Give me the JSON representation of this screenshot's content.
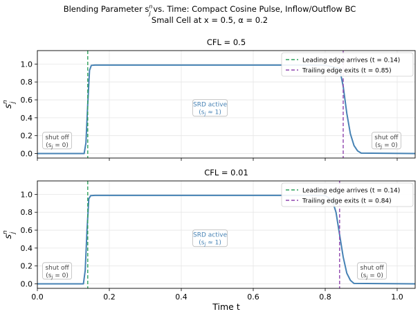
{
  "figure": {
    "title_line1": "Blending Parameter s",
    "title_sup": "n",
    "title_sub": "j",
    "title_rest": " vs. Time: Compact Cosine Pulse, Inflow/Outflow BC",
    "title_line2": "Small Cell at x = 0.5, α = 0.2"
  },
  "colors": {
    "curve": "#4682b4",
    "leading": "#2ca05a",
    "trailing": "#8e44ad",
    "annotation_text": "#4682b4",
    "shutoff_text": "#444444"
  },
  "chart_data": [
    {
      "type": "line",
      "title": "CFL = 0.5",
      "xlabel": "",
      "ylabel": "s",
      "ylabel_sup": "n",
      "ylabel_sub": "j",
      "xlim": [
        0.0,
        1.05
      ],
      "ylim": [
        -0.05,
        1.15
      ],
      "x_ticks": [
        0.0,
        0.2,
        0.4,
        0.6,
        0.8,
        1.0
      ],
      "x_tick_labels": [
        "",
        "",
        "",
        "",
        "",
        ""
      ],
      "y_ticks": [
        0.0,
        0.2,
        0.4,
        0.6,
        0.8,
        1.0
      ],
      "y_tick_labels": [
        "0.0",
        "0.2",
        "0.4",
        "0.6",
        "0.8",
        "1.0"
      ],
      "grid": true,
      "series": [
        {
          "x": [
            0.0,
            0.13,
            0.135,
            0.14,
            0.145,
            0.15,
            0.16,
            0.8,
            0.84,
            0.85,
            0.86,
            0.87,
            0.88,
            0.89,
            0.9,
            1.05
          ],
          "y": [
            0.0,
            0.0,
            0.12,
            0.55,
            0.93,
            0.985,
            0.988,
            0.988,
            0.95,
            0.75,
            0.45,
            0.22,
            0.09,
            0.03,
            0.005,
            0.0
          ]
        }
      ],
      "vlines": [
        {
          "x": 0.14,
          "label": "Leading edge arrives (t = 0.14)",
          "role": "leading"
        },
        {
          "x": 0.85,
          "label": "Trailing edge exits (t = 0.85)",
          "role": "trailing"
        }
      ],
      "legend_position": "top-right",
      "annotations": [
        {
          "role": "active",
          "x": 0.48,
          "y": 0.51,
          "line1": "SRD active",
          "line2": "(s",
          "line2_sub": "j",
          "line2_rest": " ≈ 1)"
        },
        {
          "role": "off-left",
          "x": 0.055,
          "y": 0.145,
          "line1": "shut off",
          "line2": "(s",
          "line2_sub": "j",
          "line2_rest": " = 0)"
        },
        {
          "role": "off-right",
          "x": 0.97,
          "y": 0.145,
          "line1": "shut off",
          "line2": "(s",
          "line2_sub": "j",
          "line2_rest": " = 0)"
        }
      ]
    },
    {
      "type": "line",
      "title": "CFL = 0.01",
      "xlabel": "Time t",
      "ylabel": "s",
      "ylabel_sup": "n",
      "ylabel_sub": "j",
      "xlim": [
        0.0,
        1.05
      ],
      "ylim": [
        -0.05,
        1.15
      ],
      "x_ticks": [
        0.0,
        0.2,
        0.4,
        0.6,
        0.8,
        1.0
      ],
      "x_tick_labels": [
        "0.0",
        "0.2",
        "0.4",
        "0.6",
        "0.8",
        "1.0"
      ],
      "y_ticks": [
        0.0,
        0.2,
        0.4,
        0.6,
        0.8,
        1.0
      ],
      "y_tick_labels": [
        "0.0",
        "0.2",
        "0.4",
        "0.6",
        "0.8",
        "1.0"
      ],
      "grid": true,
      "series": [
        {
          "x": [
            0.0,
            0.128,
            0.133,
            0.138,
            0.143,
            0.148,
            0.16,
            0.8,
            0.82,
            0.83,
            0.84,
            0.85,
            0.86,
            0.87,
            0.88,
            1.05
          ],
          "y": [
            0.0,
            0.0,
            0.15,
            0.6,
            0.95,
            0.985,
            0.988,
            0.988,
            0.93,
            0.8,
            0.55,
            0.3,
            0.12,
            0.04,
            0.005,
            0.0
          ]
        }
      ],
      "vlines": [
        {
          "x": 0.14,
          "label": "Leading edge arrives (t = 0.14)",
          "role": "leading"
        },
        {
          "x": 0.84,
          "label": "Trailing edge exits (t = 0.84)",
          "role": "trailing"
        }
      ],
      "legend_position": "top-right",
      "annotations": [
        {
          "role": "active",
          "x": 0.48,
          "y": 0.51,
          "line1": "SRD active",
          "line2": "(s",
          "line2_sub": "j",
          "line2_rest": " ≈ 1)"
        },
        {
          "role": "off-left",
          "x": 0.055,
          "y": 0.145,
          "line1": "shut off",
          "line2": "(s",
          "line2_sub": "j",
          "line2_rest": " = 0)"
        },
        {
          "role": "off-right",
          "x": 0.93,
          "y": 0.145,
          "line1": "shut off",
          "line2": "(s",
          "line2_sub": "j",
          "line2_rest": " = 0)"
        }
      ]
    }
  ]
}
